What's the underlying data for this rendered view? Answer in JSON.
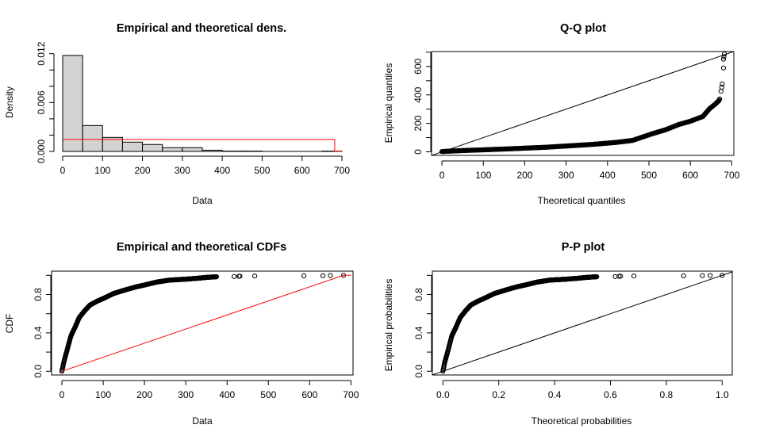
{
  "figure": {
    "layout": "2x2",
    "colors": {
      "axis": "#000000",
      "hist_fill": "#d3d3d3",
      "theoretical": "#ff0000",
      "points": "#000000"
    }
  },
  "chart_data": [
    {
      "id": "density",
      "type": "bar",
      "title": "Empirical and theoretical dens.",
      "xlabel": "Data",
      "ylabel": "Density",
      "xlim": [
        0,
        700
      ],
      "ylim": [
        0,
        0.012
      ],
      "xticks": [
        0,
        100,
        200,
        300,
        400,
        500,
        600,
        700
      ],
      "xtick_labels": [
        "0",
        "100",
        "200",
        "300",
        "400",
        "500",
        "600",
        "700"
      ],
      "yticks": [
        0,
        0.002,
        0.004,
        0.006,
        0.008,
        0.01,
        0.012
      ],
      "ytick_labels": [
        "0.000",
        "",
        "",
        "0.006",
        "",
        "",
        "0.012"
      ],
      "bins": [
        {
          "from": 0,
          "to": 50,
          "density": 0.01178
        },
        {
          "from": 50,
          "to": 100,
          "density": 0.00318
        },
        {
          "from": 100,
          "to": 150,
          "density": 0.00172
        },
        {
          "from": 150,
          "to": 200,
          "density": 0.00114
        },
        {
          "from": 200,
          "to": 250,
          "density": 0.00085
        },
        {
          "from": 250,
          "to": 300,
          "density": 0.00046
        },
        {
          "from": 300,
          "to": 350,
          "density": 0.00046
        },
        {
          "from": 350,
          "to": 400,
          "density": 0.00015
        },
        {
          "from": 400,
          "to": 450,
          "density": 4e-05
        },
        {
          "from": 450,
          "to": 500,
          "density": 4e-05
        },
        {
          "from": 500,
          "to": 550,
          "density": 0
        },
        {
          "from": 550,
          "to": 600,
          "density": 0
        },
        {
          "from": 600,
          "to": 650,
          "density": 0
        },
        {
          "from": 650,
          "to": 700,
          "density": 4e-05
        }
      ],
      "theoretical_density": {
        "name": "uniform",
        "x": [
          0,
          682,
          682,
          700
        ],
        "y": [
          0.00147,
          0.00147,
          0,
          0
        ]
      }
    },
    {
      "id": "qq",
      "type": "scatter",
      "title": "Q-Q plot",
      "xlabel": "Theoretical quantiles",
      "ylabel": "Empirical quantiles",
      "xlim": [
        -25,
        705
      ],
      "ylim": [
        -25,
        705
      ],
      "xticks": [
        0,
        100,
        200,
        300,
        400,
        500,
        600,
        700
      ],
      "xtick_labels": [
        "0",
        "100",
        "200",
        "300",
        "400",
        "500",
        "600",
        "700"
      ],
      "yticks": [
        0,
        100,
        200,
        300,
        400,
        500,
        600,
        700
      ],
      "ytick_labels": [
        "0",
        "",
        "200",
        "",
        "400",
        "",
        "600",
        ""
      ],
      "reference_line": {
        "slope": 1,
        "intercept": 0
      },
      "curve": {
        "x": [
          0,
          20,
          60,
          100,
          170,
          250,
          363,
          420,
          460,
          508,
          540,
          572,
          600,
          630,
          647,
          660,
          669,
          672
        ],
        "y": [
          2,
          5,
          10,
          14,
          22,
          32,
          52,
          66,
          80,
          127,
          155,
          192,
          215,
          248,
          305,
          335,
          360,
          380
        ]
      },
      "tail_points": {
        "x": [
          674,
          676,
          677,
          680,
          680,
          681,
          682
        ],
        "y": [
          426,
          454,
          477,
          589,
          651,
          669,
          688
        ]
      }
    },
    {
      "id": "cdf",
      "type": "scatter",
      "title": "Empirical and theoretical CDFs",
      "xlabel": "Data",
      "ylabel": "CDF",
      "xlim": [
        -25,
        705
      ],
      "ylim": [
        -0.04,
        1.04
      ],
      "xticks": [
        0,
        100,
        200,
        300,
        400,
        500,
        600,
        700
      ],
      "xtick_labels": [
        "0",
        "100",
        "200",
        "300",
        "400",
        "500",
        "600",
        "700"
      ],
      "yticks": [
        0,
        0.2,
        0.4,
        0.6,
        0.8,
        1.0
      ],
      "ytick_labels": [
        "0.0",
        "",
        "0.4",
        "",
        "0.8",
        ""
      ],
      "empirical_curve": {
        "x": [
          0,
          5,
          10,
          22,
          32,
          42,
          55,
          68,
          85,
          101,
          125,
          155,
          180,
          201,
          230,
          260,
          300,
          330,
          354,
          375
        ],
        "y": [
          0,
          0.1,
          0.18,
          0.37,
          0.46,
          0.56,
          0.63,
          0.69,
          0.73,
          0.76,
          0.81,
          0.85,
          0.88,
          0.9,
          0.93,
          0.95,
          0.96,
          0.97,
          0.98,
          0.985
        ]
      },
      "tail_points": {
        "x": [
          417,
          429,
          431,
          467,
          586,
          632,
          650,
          682
        ],
        "y": [
          0.988,
          0.99,
          0.991,
          0.993,
          0.995,
          0.997,
          0.998,
          1.0
        ]
      },
      "theoretical_cdf": {
        "name": "uniform",
        "x": [
          0,
          682,
          700
        ],
        "y": [
          0,
          1,
          1
        ]
      }
    },
    {
      "id": "pp",
      "type": "scatter",
      "title": "P-P plot",
      "xlabel": "Theoretical probabilities",
      "ylabel": "Empirical probabilities",
      "xlim": [
        -0.04,
        1.04
      ],
      "ylim": [
        -0.04,
        1.04
      ],
      "xticks": [
        0,
        0.2,
        0.4,
        0.6,
        0.8,
        1.0
      ],
      "xtick_labels": [
        "0.0",
        "0.2",
        "0.4",
        "0.6",
        "0.8",
        "1.0"
      ],
      "yticks": [
        0,
        0.2,
        0.4,
        0.6,
        0.8,
        1.0
      ],
      "ytick_labels": [
        "0.0",
        "",
        "0.4",
        "",
        "0.8",
        ""
      ],
      "reference_line": {
        "slope": 1,
        "intercept": 0
      },
      "empirical_curve": {
        "x": [
          0,
          0.007,
          0.015,
          0.032,
          0.047,
          0.062,
          0.081,
          0.1,
          0.125,
          0.148,
          0.184,
          0.228,
          0.265,
          0.296,
          0.338,
          0.382,
          0.441,
          0.485,
          0.52,
          0.551
        ],
        "y": [
          0,
          0.1,
          0.18,
          0.37,
          0.46,
          0.56,
          0.63,
          0.69,
          0.73,
          0.76,
          0.81,
          0.85,
          0.88,
          0.9,
          0.93,
          0.95,
          0.96,
          0.97,
          0.98,
          0.985
        ]
      },
      "tail_points": {
        "x": [
          0.617,
          0.631,
          0.636,
          0.684,
          0.862,
          0.929,
          0.957,
          1.0
        ],
        "y": [
          0.988,
          0.99,
          0.991,
          0.993,
          0.995,
          0.997,
          0.998,
          1.0
        ]
      }
    }
  ]
}
